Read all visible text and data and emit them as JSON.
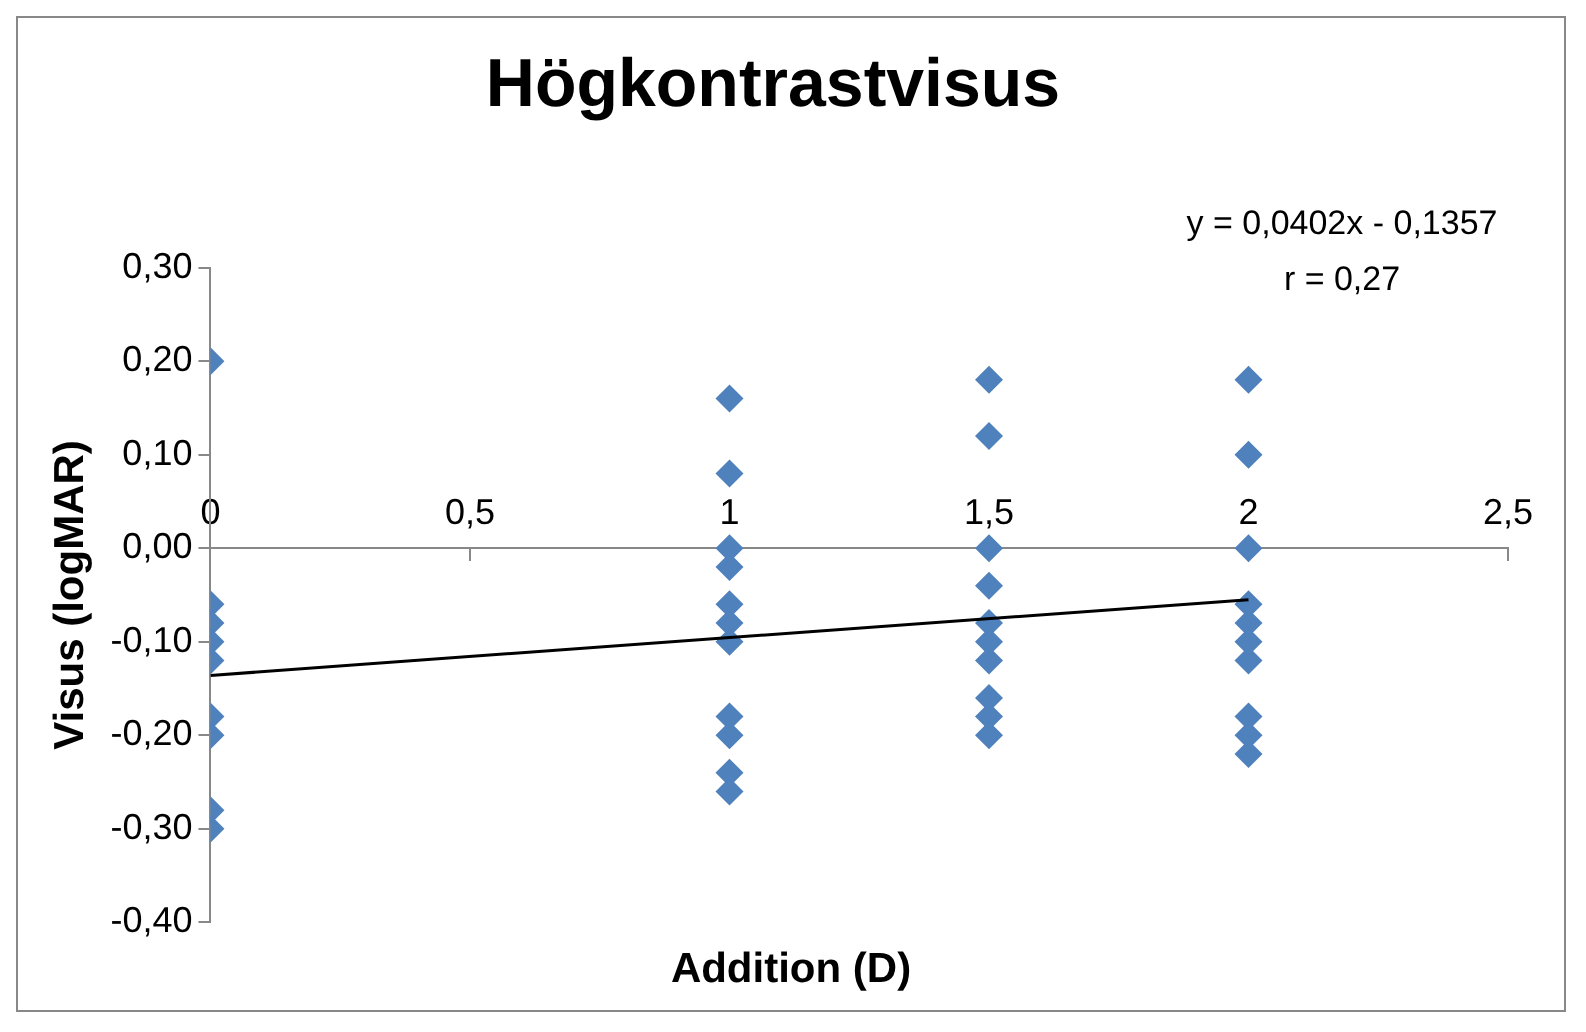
{
  "chart_data": {
    "type": "scatter",
    "title": "Högkontrastvisus",
    "xlabel": "Addition (D)",
    "ylabel": "Visus (logMAR)",
    "annotations": [
      "y = 0,0402x - 0,1357",
      "r = 0,27"
    ],
    "series": [
      {
        "color": "#4f81bd",
        "marker": "diamond",
        "x": [
          0,
          0,
          0,
          0,
          0,
          0,
          0,
          0,
          0,
          1,
          1,
          1,
          1,
          1,
          1,
          1,
          1,
          1,
          1,
          1,
          1.5,
          1.5,
          1.5,
          1.5,
          1.5,
          1.5,
          1.5,
          1.5,
          1.5,
          1.5,
          2,
          2,
          2,
          2,
          2,
          2,
          2,
          2,
          2,
          2
        ],
        "values": [
          0.2,
          -0.06,
          -0.08,
          -0.1,
          -0.12,
          -0.18,
          -0.2,
          -0.28,
          -0.3,
          0.16,
          0.08,
          0.0,
          -0.02,
          -0.06,
          -0.08,
          -0.1,
          -0.18,
          -0.2,
          -0.24,
          -0.26,
          0.18,
          0.12,
          0.0,
          -0.04,
          -0.08,
          -0.1,
          -0.12,
          -0.16,
          -0.18,
          -0.2,
          0.18,
          0.1,
          0.0,
          -0.06,
          -0.08,
          -0.1,
          -0.12,
          -0.18,
          -0.2,
          -0.22
        ]
      },
      {
        "type": "line",
        "color": "#000000",
        "marker": "none",
        "x": [
          0,
          2
        ],
        "values": [
          -0.136,
          -0.055
        ]
      }
    ],
    "xlim": [
      0,
      2.5
    ],
    "xticks": [
      0,
      {
        "value": 0.5,
        "label": "0,5"
      },
      1,
      {
        "value": 1.5,
        "label": "1,5"
      },
      2,
      {
        "value": 2.5,
        "label": "2,5"
      }
    ],
    "ylim": [
      -0.4,
      0.3
    ],
    "yticks": [
      {
        "value": -0.4,
        "label": "-0,40"
      },
      {
        "value": -0.3,
        "label": "-0,30"
      },
      {
        "value": -0.2,
        "label": "-0,20"
      },
      {
        "value": -0.1,
        "label": "-0,10"
      },
      {
        "value": 0,
        "label": "0,00"
      },
      {
        "value": 0.1,
        "label": "0,10"
      },
      {
        "value": 0.2,
        "label": "0,20"
      },
      {
        "value": 0.3,
        "label": "0,30"
      }
    ],
    "grid": false,
    "legend": false
  }
}
